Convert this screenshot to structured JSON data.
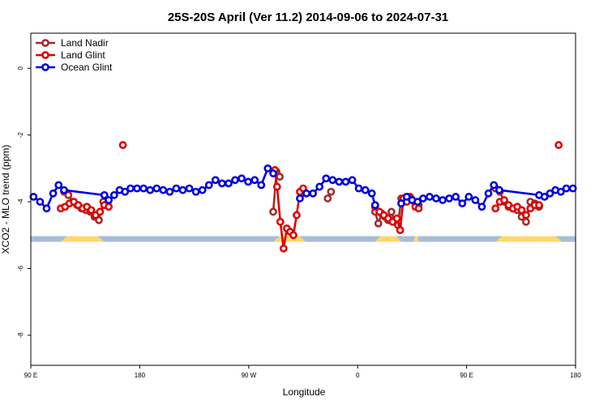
{
  "chart_data": {
    "type": "line",
    "title": "25S-20S April (Ver 11.2)   2014-09-06 to 2024-07-31",
    "xlabel": "Longitude",
    "ylabel": "XCO2 - MLO trend (ppm)",
    "xlim": [
      0,
      1
    ],
    "ylim": [
      -8.9,
      1.05
    ],
    "x_ticks": [
      {
        "pos": 0.0,
        "label": "90 E"
      },
      {
        "pos": 0.2,
        "label": "180"
      },
      {
        "pos": 0.4,
        "label": "90 W"
      },
      {
        "pos": 0.6,
        "label": "0"
      },
      {
        "pos": 0.8,
        "label": "90 E"
      },
      {
        "pos": 1.0,
        "label": "180"
      }
    ],
    "y_ticks": [
      0,
      -2,
      -4,
      -6,
      -8
    ],
    "legend_position": "top-left",
    "land_band": {
      "y_top": -5.03,
      "y_bottom": -5.2,
      "ocean_color": "#a6bddb",
      "land_color": "#fdd870",
      "land_segments": [
        [
          0.055,
          0.135
        ],
        [
          0.445,
          0.505
        ],
        [
          0.632,
          0.68
        ],
        [
          0.703,
          0.712
        ],
        [
          0.853,
          0.975
        ]
      ]
    },
    "series": [
      {
        "name": "Land Nadir",
        "color": "#a52a2a",
        "segments": [
          [
            [
              0.061,
              -3.7
            ],
            [
              0.069,
              -3.8
            ],
            [
              0.077,
              -4.0
            ],
            [
              0.085,
              -4.1
            ],
            [
              0.093,
              -4.2
            ],
            [
              0.101,
              -4.25
            ],
            [
              0.109,
              -4.3
            ],
            [
              0.117,
              -4.45
            ],
            [
              0.125,
              -4.55
            ],
            [
              0.133,
              -4.0
            ],
            [
              0.141,
              -4.05
            ]
          ],
          [
            [
              0.445,
              -4.3
            ],
            [
              0.451,
              -3.1
            ],
            [
              0.457,
              -3.25
            ]
          ],
          [
            [
              0.545,
              -3.9
            ],
            [
              0.551,
              -3.7
            ]
          ],
          [
            [
              0.632,
              -4.3
            ],
            [
              0.638,
              -4.65
            ],
            [
              0.644,
              -4.35
            ],
            [
              0.65,
              -4.45
            ],
            [
              0.656,
              -4.55
            ],
            [
              0.662,
              -4.3
            ],
            [
              0.668,
              -4.6
            ],
            [
              0.674,
              -4.7
            ],
            [
              0.68,
              -3.9
            ],
            [
              0.688,
              -3.95
            ],
            [
              0.696,
              -3.85
            ],
            [
              0.704,
              -4.0
            ],
            [
              0.712,
              -4.1
            ]
          ],
          [
            [
              0.853,
              -3.6
            ],
            [
              0.861,
              -3.7
            ],
            [
              0.869,
              -4.0
            ],
            [
              0.877,
              -4.15
            ],
            [
              0.885,
              -4.2
            ],
            [
              0.893,
              -4.25
            ],
            [
              0.901,
              -4.45
            ],
            [
              0.909,
              -4.6
            ],
            [
              0.917,
              -4.0
            ],
            [
              0.925,
              -4.05
            ],
            [
              0.933,
              -4.15
            ]
          ]
        ]
      },
      {
        "name": "Land Glint",
        "color": "#e00000",
        "segments": [
          [
            [
              0.055,
              -4.2
            ],
            [
              0.063,
              -4.15
            ],
            [
              0.071,
              -4.05
            ],
            [
              0.079,
              -4.0
            ],
            [
              0.087,
              -4.1
            ],
            [
              0.095,
              -4.2
            ],
            [
              0.103,
              -4.15
            ],
            [
              0.111,
              -4.25
            ],
            [
              0.119,
              -4.4
            ],
            [
              0.127,
              -4.3
            ],
            [
              0.135,
              -4.1
            ],
            [
              0.143,
              -4.15
            ]
          ],
          [
            [
              0.169,
              -2.3
            ]
          ],
          [
            [
              0.448,
              -3.05
            ],
            [
              0.452,
              -3.55
            ],
            [
              0.458,
              -4.6
            ],
            [
              0.464,
              -5.4
            ],
            [
              0.47,
              -4.8
            ],
            [
              0.476,
              -4.9
            ],
            [
              0.482,
              -5.0
            ],
            [
              0.488,
              -4.4
            ],
            [
              0.494,
              -3.7
            ],
            [
              0.5,
              -3.6
            ]
          ],
          [
            [
              0.632,
              -4.15
            ],
            [
              0.64,
              -4.3
            ],
            [
              0.648,
              -4.4
            ],
            [
              0.656,
              -4.5
            ],
            [
              0.664,
              -4.6
            ],
            [
              0.672,
              -4.5
            ],
            [
              0.678,
              -4.85
            ],
            [
              0.684,
              -3.9
            ],
            [
              0.69,
              -4.0
            ],
            [
              0.698,
              -3.9
            ],
            [
              0.706,
              -4.15
            ],
            [
              0.712,
              -4.2
            ]
          ],
          [
            [
              0.853,
              -4.2
            ],
            [
              0.861,
              -4.0
            ],
            [
              0.869,
              -3.95
            ],
            [
              0.877,
              -4.1
            ],
            [
              0.885,
              -4.2
            ],
            [
              0.893,
              -4.15
            ],
            [
              0.901,
              -4.25
            ],
            [
              0.909,
              -4.4
            ],
            [
              0.917,
              -4.2
            ],
            [
              0.925,
              -4.1
            ],
            [
              0.933,
              -4.1
            ]
          ],
          [
            [
              0.969,
              -2.3
            ]
          ]
        ]
      },
      {
        "name": "Ocean Glint",
        "color": "#0000e0",
        "segments": [
          [
            [
              0.005,
              -3.85
            ],
            [
              0.017,
              -4.0
            ],
            [
              0.029,
              -4.2
            ],
            [
              0.041,
              -3.75
            ],
            [
              0.051,
              -3.5
            ],
            [
              0.061,
              -3.65
            ],
            [
              0.135,
              -3.8
            ],
            [
              0.143,
              -3.95
            ],
            [
              0.153,
              -3.8
            ],
            [
              0.163,
              -3.65
            ],
            [
              0.173,
              -3.7
            ],
            [
              0.183,
              -3.6
            ],
            [
              0.195,
              -3.6
            ],
            [
              0.207,
              -3.6
            ],
            [
              0.219,
              -3.65
            ],
            [
              0.231,
              -3.6
            ],
            [
              0.243,
              -3.65
            ],
            [
              0.255,
              -3.7
            ],
            [
              0.267,
              -3.6
            ],
            [
              0.279,
              -3.65
            ],
            [
              0.291,
              -3.6
            ],
            [
              0.303,
              -3.7
            ],
            [
              0.315,
              -3.65
            ],
            [
              0.327,
              -3.5
            ],
            [
              0.339,
              -3.35
            ],
            [
              0.351,
              -3.45
            ],
            [
              0.363,
              -3.45
            ],
            [
              0.375,
              -3.35
            ],
            [
              0.387,
              -3.3
            ],
            [
              0.399,
              -3.4
            ],
            [
              0.411,
              -3.35
            ],
            [
              0.423,
              -3.5
            ],
            [
              0.435,
              -3.0
            ],
            [
              0.445,
              -3.15
            ]
          ],
          [
            [
              0.494,
              -3.9
            ],
            [
              0.506,
              -3.75
            ],
            [
              0.518,
              -3.75
            ],
            [
              0.53,
              -3.55
            ],
            [
              0.542,
              -3.3
            ],
            [
              0.554,
              -3.35
            ],
            [
              0.566,
              -3.4
            ],
            [
              0.578,
              -3.4
            ],
            [
              0.59,
              -3.35
            ],
            [
              0.602,
              -3.6
            ],
            [
              0.614,
              -3.65
            ],
            [
              0.626,
              -3.75
            ],
            [
              0.632,
              -4.1
            ]
          ],
          [
            [
              0.68,
              -4.05
            ],
            [
              0.69,
              -3.85
            ],
            [
              0.7,
              -3.95
            ],
            [
              0.71,
              -4.0
            ],
            [
              0.72,
              -3.9
            ],
            [
              0.732,
              -3.85
            ],
            [
              0.744,
              -3.9
            ],
            [
              0.756,
              -3.95
            ],
            [
              0.768,
              -3.9
            ],
            [
              0.78,
              -3.85
            ],
            [
              0.792,
              -4.05
            ],
            [
              0.804,
              -3.85
            ],
            [
              0.816,
              -3.95
            ],
            [
              0.828,
              -4.15
            ],
            [
              0.84,
              -3.75
            ],
            [
              0.85,
              -3.5
            ],
            [
              0.86,
              -3.65
            ],
            [
              0.933,
              -3.8
            ],
            [
              0.943,
              -3.85
            ],
            [
              0.953,
              -3.75
            ],
            [
              0.963,
              -3.65
            ],
            [
              0.973,
              -3.7
            ],
            [
              0.983,
              -3.6
            ],
            [
              0.995,
              -3.6
            ]
          ]
        ]
      }
    ]
  }
}
